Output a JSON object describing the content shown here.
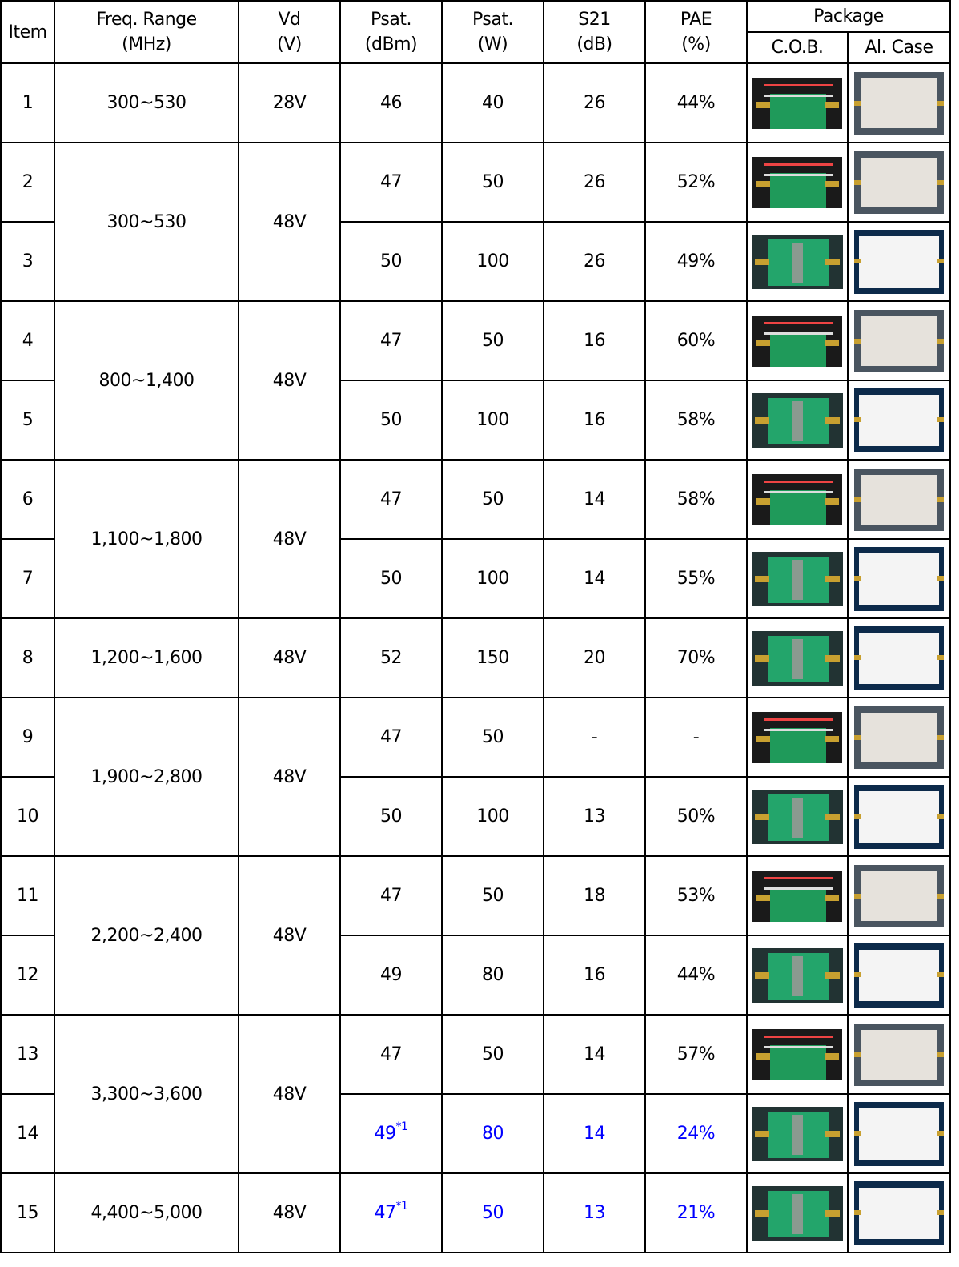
{
  "header": {
    "item": "Item",
    "freq": [
      "Freq. Range",
      "(MHz)"
    ],
    "vd": [
      "Vd",
      "(V)"
    ],
    "psat_dbm": [
      "Psat.",
      "(dBm)"
    ],
    "psat_w": [
      "Psat.",
      "(W)"
    ],
    "s21": [
      "S21",
      "(dB)"
    ],
    "pae": [
      "PAE",
      "(%)"
    ],
    "package": "Package",
    "cob": "C.O.B.",
    "case": "Al. Case"
  },
  "highlight_color": "#0000ff",
  "groups": [
    {
      "freq": "300~530",
      "vd": "28V",
      "rows": [
        {
          "item": "1",
          "psat_dbm": "46",
          "note": "",
          "psat_w": "40",
          "s21": "26",
          "pae": "44%",
          "highlight": false,
          "cob": "small",
          "case": "grey"
        }
      ]
    },
    {
      "freq": "300~530",
      "vd": "48V",
      "rows": [
        {
          "item": "2",
          "psat_dbm": "47",
          "note": "",
          "psat_w": "50",
          "s21": "26",
          "pae": "52%",
          "highlight": false,
          "cob": "small",
          "case": "grey"
        },
        {
          "item": "3",
          "psat_dbm": "50",
          "note": "",
          "psat_w": "100",
          "s21": "26",
          "pae": "49%",
          "highlight": false,
          "cob": "large",
          "case": "white"
        }
      ]
    },
    {
      "freq": "800~1,400",
      "vd": "48V",
      "rows": [
        {
          "item": "4",
          "psat_dbm": "47",
          "note": "",
          "psat_w": "50",
          "s21": "16",
          "pae": "60%",
          "highlight": false,
          "cob": "small",
          "case": "grey"
        },
        {
          "item": "5",
          "psat_dbm": "50",
          "note": "",
          "psat_w": "100",
          "s21": "16",
          "pae": "58%",
          "highlight": false,
          "cob": "large",
          "case": "white"
        }
      ]
    },
    {
      "freq": "1,100~1,800",
      "vd": "48V",
      "rows": [
        {
          "item": "6",
          "psat_dbm": "47",
          "note": "",
          "psat_w": "50",
          "s21": "14",
          "pae": "58%",
          "highlight": false,
          "cob": "small",
          "case": "grey"
        },
        {
          "item": "7",
          "psat_dbm": "50",
          "note": "",
          "psat_w": "100",
          "s21": "14",
          "pae": "55%",
          "highlight": false,
          "cob": "large",
          "case": "white"
        }
      ]
    },
    {
      "freq": "1,200~1,600",
      "vd": "48V",
      "rows": [
        {
          "item": "8",
          "psat_dbm": "52",
          "note": "",
          "psat_w": "150",
          "s21": "20",
          "pae": "70%",
          "highlight": false,
          "cob": "large",
          "case": "white"
        }
      ]
    },
    {
      "freq": "1,900~2,800",
      "vd": "48V",
      "rows": [
        {
          "item": "9",
          "psat_dbm": "47",
          "note": "",
          "psat_w": "50",
          "s21": "-",
          "pae": "-",
          "highlight": false,
          "cob": "small",
          "case": "grey"
        },
        {
          "item": "10",
          "psat_dbm": "50",
          "note": "",
          "psat_w": "100",
          "s21": "13",
          "pae": "50%",
          "highlight": false,
          "cob": "large",
          "case": "white"
        }
      ]
    },
    {
      "freq": "2,200~2,400",
      "vd": "48V",
      "rows": [
        {
          "item": "11",
          "psat_dbm": "47",
          "note": "",
          "psat_w": "50",
          "s21": "18",
          "pae": "53%",
          "highlight": false,
          "cob": "small",
          "case": "grey"
        },
        {
          "item": "12",
          "psat_dbm": "49",
          "note": "",
          "psat_w": "80",
          "s21": "16",
          "pae": "44%",
          "highlight": false,
          "cob": "large",
          "case": "white"
        }
      ]
    },
    {
      "freq": "3,300~3,600",
      "vd": "48V",
      "rows": [
        {
          "item": "13",
          "psat_dbm": "47",
          "note": "",
          "psat_w": "50",
          "s21": "14",
          "pae": "57%",
          "highlight": false,
          "cob": "small",
          "case": "grey"
        },
        {
          "item": "14",
          "psat_dbm": "49",
          "note": "*1",
          "psat_w": "80",
          "s21": "14",
          "pae": "24%",
          "highlight": true,
          "cob": "large",
          "case": "white"
        }
      ]
    },
    {
      "freq": "4,400~5,000",
      "vd": "48V",
      "rows": [
        {
          "item": "15",
          "psat_dbm": "47",
          "note": "*1",
          "psat_w": "50",
          "s21": "13",
          "pae": "21%",
          "highlight": true,
          "cob": "large",
          "case": "white"
        }
      ]
    }
  ]
}
